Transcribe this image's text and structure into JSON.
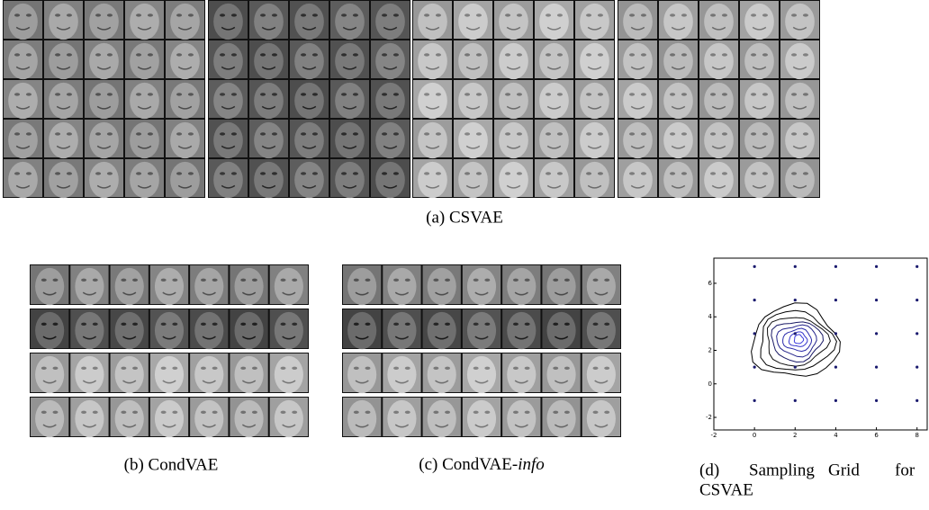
{
  "captions": {
    "a": "(a) CSVAE",
    "b": "(b) CondVAE",
    "c": {
      "text": "(c) CondVAE-",
      "emphasis": "info"
    },
    "d": {
      "line1": [
        "(d)",
        "Sampling",
        "Grid",
        "for"
      ],
      "line2": "CSVAE"
    }
  },
  "chart_data": {
    "type": "scatter",
    "x": [
      0,
      2,
      4,
      6,
      8,
      0,
      2,
      4,
      6,
      8,
      0,
      2,
      4,
      6,
      8,
      0,
      2,
      4,
      6,
      8,
      0,
      2,
      4,
      6,
      8
    ],
    "y": [
      7,
      7,
      7,
      7,
      7,
      5,
      5,
      5,
      5,
      5,
      3,
      3,
      3,
      3,
      3,
      1,
      1,
      1,
      1,
      1,
      -1,
      -1,
      -1,
      -1,
      -1
    ],
    "color": "#1a1a6e",
    "xlim": [
      -2,
      8.5
    ],
    "ylim": [
      -2.75,
      7.5
    ],
    "xticks": [
      -2,
      0,
      2,
      4,
      6,
      8
    ],
    "yticks": [
      -2,
      0,
      2,
      4,
      6
    ]
  }
}
